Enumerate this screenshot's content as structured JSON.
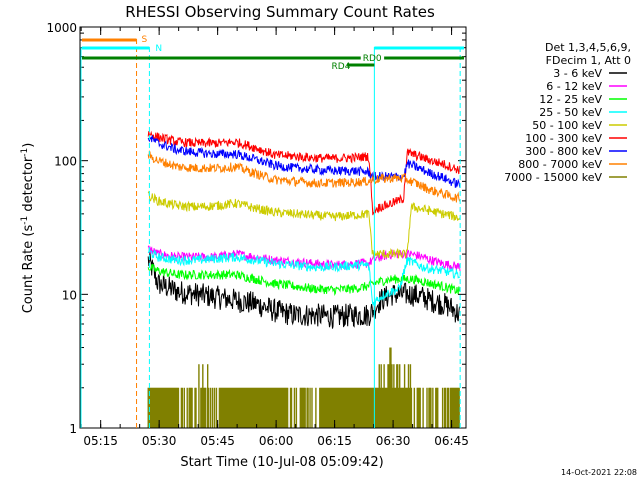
{
  "chart_data": {
    "type": "line",
    "title": "RHESSI Observing Summary Count Rates",
    "xlabel": "Start Time (10-Jul-08 05:09:42)",
    "ylabel_main": "Count Rate (s",
    "ylabel_sup1": "-1",
    "ylabel_mid": " detector",
    "ylabel_sup2": "-1",
    "ylabel_end": ")",
    "yscale": "log",
    "ylim": [
      1,
      1000
    ],
    "xlim_minutes": [
      0,
      99
    ],
    "x_ticks": [
      {
        "label": "05:15",
        "t": 5.3
      },
      {
        "label": "05:30",
        "t": 20.3
      },
      {
        "label": "05:45",
        "t": 35.3
      },
      {
        "label": "06:00",
        "t": 50.3
      },
      {
        "label": "06:15",
        "t": 65.3
      },
      {
        "label": "06:30",
        "t": 80.3
      },
      {
        "label": "06:45",
        "t": 95.3
      }
    ],
    "y_ticks": [
      {
        "label": "1",
        "v": 1
      },
      {
        "label": "10",
        "v": 10
      },
      {
        "label": "100",
        "v": 100
      },
      {
        "label": "1000",
        "v": 1000
      }
    ],
    "legend_header": [
      "Det 1,3,4,5,6,9,",
      "FDecim 1, Att 0"
    ],
    "legend_position": "right",
    "series": [
      {
        "name": "3 - 6 keV",
        "color": "#000000",
        "x": [
          17.5,
          20,
          25,
          30,
          35,
          40,
          45,
          50,
          55,
          60,
          65,
          70,
          74,
          75,
          77,
          80,
          82,
          85,
          88,
          90,
          93,
          95,
          97.5
        ],
        "y": [
          18,
          12,
          10.5,
          10,
          9.5,
          9,
          8.5,
          7.5,
          7,
          7,
          6.8,
          7,
          7,
          7.5,
          9,
          10,
          10,
          10,
          9.5,
          9,
          8.5,
          8,
          7
        ]
      },
      {
        "name": "6 - 12 keV",
        "color": "#ff00ff",
        "x": [
          17.5,
          20,
          25,
          30,
          35,
          40,
          45,
          50,
          55,
          60,
          65,
          70,
          74,
          75,
          77,
          80,
          82,
          85,
          88,
          90,
          93,
          95,
          97.5
        ],
        "y": [
          22,
          20,
          19,
          19,
          19,
          20,
          19,
          18,
          17.5,
          17,
          16.5,
          17,
          17,
          18,
          19,
          20,
          20,
          20,
          19,
          18,
          17,
          16.5,
          16
        ]
      },
      {
        "name": "12 - 25 keV",
        "color": "#00ff00",
        "x": [
          17.5,
          20,
          25,
          30,
          35,
          40,
          45,
          50,
          55,
          60,
          65,
          70,
          74,
          75,
          77,
          80,
          82,
          85,
          88,
          90,
          93,
          95,
          97.5
        ],
        "y": [
          16,
          15,
          14,
          14,
          14,
          14,
          13,
          12,
          11.5,
          11,
          10.8,
          11,
          11.5,
          12,
          12.5,
          13,
          13,
          13,
          12.5,
          12,
          11.5,
          11,
          10.5
        ]
      },
      {
        "name": "25 - 50 keV",
        "color": "#00ffff",
        "x": [
          17.5,
          20,
          25,
          30,
          35,
          40,
          45,
          50,
          55,
          60,
          65,
          70,
          74,
          75,
          76,
          78,
          80,
          82,
          84,
          86,
          88,
          90,
          93,
          95,
          97.5
        ],
        "y": [
          21,
          19,
          18,
          18,
          18.5,
          19,
          18,
          17,
          16.5,
          16,
          16,
          16.5,
          16.5,
          8.5,
          9,
          10,
          10.5,
          11,
          18,
          17,
          16,
          15.5,
          15,
          14.5,
          14
        ]
      },
      {
        "name": "50 - 100 keV",
        "color": "#cccc00",
        "x": [
          17.5,
          20,
          25,
          30,
          35,
          40,
          45,
          50,
          55,
          60,
          65,
          70,
          74,
          75,
          77,
          80,
          84,
          85,
          87,
          90,
          93,
          95,
          97.5
        ],
        "y": [
          55,
          50,
          46,
          45,
          46,
          48,
          44,
          41,
          40,
          39,
          38,
          39,
          40,
          20,
          20,
          20,
          20,
          45,
          44,
          42,
          40,
          39,
          37
        ]
      },
      {
        "name": "100 - 300 keV",
        "color": "#ff0000",
        "x": [
          17.5,
          20,
          25,
          30,
          35,
          40,
          45,
          50,
          55,
          60,
          65,
          70,
          74,
          75,
          77,
          80,
          83,
          84,
          86,
          88,
          90,
          93,
          95,
          97.5
        ],
        "y": [
          160,
          150,
          138,
          135,
          135,
          138,
          125,
          110,
          108,
          105,
          104,
          105,
          108,
          42,
          45,
          48,
          52,
          115,
          110,
          105,
          100,
          95,
          90,
          85
        ]
      },
      {
        "name": "300 - 800 keV",
        "color": "#0000ff",
        "x": [
          17.5,
          20,
          25,
          30,
          35,
          40,
          45,
          50,
          55,
          60,
          65,
          70,
          74,
          75,
          77,
          80,
          83,
          84,
          86,
          88,
          90,
          93,
          95,
          97.5
        ],
        "y": [
          150,
          135,
          120,
          115,
          112,
          112,
          102,
          92,
          88,
          86,
          84,
          84,
          82,
          76,
          76,
          76,
          76,
          95,
          90,
          85,
          80,
          75,
          70,
          66
        ]
      },
      {
        "name": "800 - 7000 keV",
        "color": "#ff8000",
        "x": [
          17.5,
          20,
          25,
          30,
          35,
          40,
          45,
          50,
          55,
          60,
          65,
          70,
          74,
          75,
          77,
          80,
          83,
          84,
          86,
          88,
          90,
          93,
          95,
          97.5
        ],
        "y": [
          110,
          100,
          90,
          88,
          88,
          90,
          80,
          72,
          70,
          68,
          68,
          69,
          70,
          72,
          73,
          74,
          74,
          72,
          68,
          64,
          60,
          57,
          54,
          52
        ]
      },
      {
        "name": "7000 - 15000 keV",
        "color": "#808000",
        "x": [
          17.5,
          97.5
        ],
        "y": [
          2,
          2
        ]
      }
    ],
    "annotations": [
      {
        "label": "S",
        "color": "#ff8000"
      },
      {
        "label": "N",
        "color": "#00ffff"
      },
      {
        "label": "RD0",
        "color": "#008000"
      },
      {
        "label": "RD4",
        "color": "#008000"
      }
    ],
    "timestamp": "14-Oct-2021 22:08"
  }
}
